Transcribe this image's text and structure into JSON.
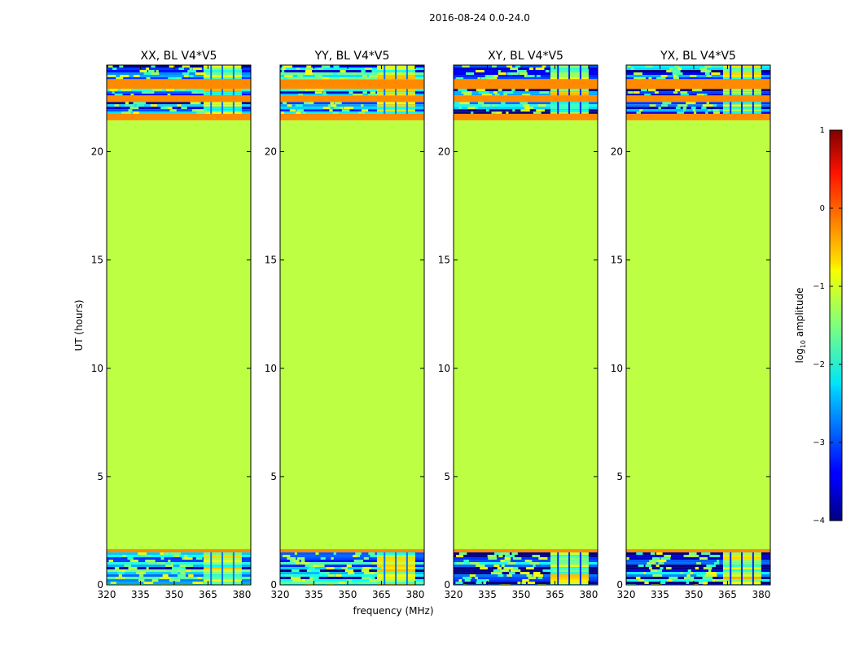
{
  "figure": {
    "suptitle": "2016-08-24 0.0-24.0",
    "ylabel": "UT (hours)",
    "xlabel": "frequency (MHz)",
    "colorbar": {
      "label_prefix": "log",
      "label_sub": "10",
      "label_suffix": " amplitude",
      "range": [
        -4,
        1
      ],
      "ticks": [
        -4,
        -3,
        -2,
        -1,
        0,
        1
      ],
      "tick_labels": [
        "−4",
        "−3",
        "−2",
        "−1",
        "0",
        "1"
      ],
      "colormap": "jet"
    }
  },
  "chart_data": [
    {
      "type": "heatmap",
      "title": "XX, BL V4*V5",
      "x_ticks": [
        320,
        335,
        350,
        365,
        380
      ],
      "y_ticks": [
        0,
        5,
        10,
        15,
        20
      ],
      "xlim": [
        320,
        384
      ],
      "ylim": [
        0,
        24
      ],
      "segments": [
        {
          "from": 0,
          "to": 1.5,
          "level": "noisy",
          "value": -2.8
        },
        {
          "from": 1.5,
          "to": 1.65,
          "level": "flag",
          "value": -0.3
        },
        {
          "from": 1.65,
          "to": 21.45,
          "level": "flat",
          "value": -1.2
        },
        {
          "from": 21.45,
          "to": 21.75,
          "level": "flag",
          "value": -0.3
        },
        {
          "from": 21.75,
          "to": 22.3,
          "level": "noisy",
          "value": -2.8
        },
        {
          "from": 22.3,
          "to": 22.6,
          "level": "flag",
          "value": -0.3
        },
        {
          "from": 22.6,
          "to": 22.9,
          "level": "noisy",
          "value": -2.8
        },
        {
          "from": 22.9,
          "to": 23.35,
          "level": "flag",
          "value": -0.3
        },
        {
          "from": 23.35,
          "to": 24,
          "level": "noisy",
          "value": -2.8
        }
      ]
    },
    {
      "type": "heatmap",
      "title": "YY, BL V4*V5",
      "x_ticks": [
        320,
        335,
        350,
        365,
        380
      ],
      "y_ticks": [
        0,
        5,
        10,
        15,
        20
      ],
      "xlim": [
        320,
        384
      ],
      "ylim": [
        0,
        24
      ],
      "segments": [
        {
          "from": 0,
          "to": 1.5,
          "level": "noisy",
          "value": -2.8
        },
        {
          "from": 1.5,
          "to": 1.65,
          "level": "flag",
          "value": -0.3
        },
        {
          "from": 1.65,
          "to": 21.45,
          "level": "flat",
          "value": -1.2
        },
        {
          "from": 21.45,
          "to": 21.75,
          "level": "flag",
          "value": -0.3
        },
        {
          "from": 21.75,
          "to": 22.3,
          "level": "noisy",
          "value": -2.8
        },
        {
          "from": 22.3,
          "to": 22.6,
          "level": "flag",
          "value": -0.3
        },
        {
          "from": 22.6,
          "to": 22.9,
          "level": "noisy",
          "value": -2.8
        },
        {
          "from": 22.9,
          "to": 23.35,
          "level": "flag",
          "value": -0.3
        },
        {
          "from": 23.35,
          "to": 24,
          "level": "noisy",
          "value": -2.8
        }
      ]
    },
    {
      "type": "heatmap",
      "title": "XY, BL V4*V5",
      "x_ticks": [
        320,
        335,
        350,
        365,
        380
      ],
      "y_ticks": [
        0,
        5,
        10,
        15,
        20
      ],
      "xlim": [
        320,
        384
      ],
      "ylim": [
        0,
        24
      ],
      "segments": [
        {
          "from": 0,
          "to": 1.5,
          "level": "noisy",
          "value": -3.2
        },
        {
          "from": 1.5,
          "to": 1.65,
          "level": "flag",
          "value": -0.3
        },
        {
          "from": 1.65,
          "to": 21.45,
          "level": "flat",
          "value": -1.2
        },
        {
          "from": 21.45,
          "to": 21.75,
          "level": "flag",
          "value": -0.3
        },
        {
          "from": 21.75,
          "to": 22.3,
          "level": "noisy",
          "value": -3.2
        },
        {
          "from": 22.3,
          "to": 22.6,
          "level": "flag",
          "value": -0.3
        },
        {
          "from": 22.6,
          "to": 22.9,
          "level": "noisy",
          "value": -3.2
        },
        {
          "from": 22.9,
          "to": 23.35,
          "level": "flag",
          "value": -0.3
        },
        {
          "from": 23.35,
          "to": 24,
          "level": "noisy",
          "value": -3.2
        }
      ]
    },
    {
      "type": "heatmap",
      "title": "YX, BL V4*V5",
      "x_ticks": [
        320,
        335,
        350,
        365,
        380
      ],
      "y_ticks": [
        0,
        5,
        10,
        15,
        20
      ],
      "xlim": [
        320,
        384
      ],
      "ylim": [
        0,
        24
      ],
      "segments": [
        {
          "from": 0,
          "to": 1.5,
          "level": "noisy",
          "value": -3.2
        },
        {
          "from": 1.5,
          "to": 1.65,
          "level": "flag",
          "value": -0.3
        },
        {
          "from": 1.65,
          "to": 21.45,
          "level": "flat",
          "value": -1.2
        },
        {
          "from": 21.45,
          "to": 21.75,
          "level": "flag",
          "value": -0.3
        },
        {
          "from": 21.75,
          "to": 22.3,
          "level": "noisy",
          "value": -3.2
        },
        {
          "from": 22.3,
          "to": 22.6,
          "level": "flag",
          "value": -0.3
        },
        {
          "from": 22.6,
          "to": 22.9,
          "level": "noisy",
          "value": -3.2
        },
        {
          "from": 22.9,
          "to": 23.35,
          "level": "flag",
          "value": -0.3
        },
        {
          "from": 23.35,
          "to": 24,
          "level": "noisy",
          "value": -3.2
        }
      ]
    }
  ]
}
